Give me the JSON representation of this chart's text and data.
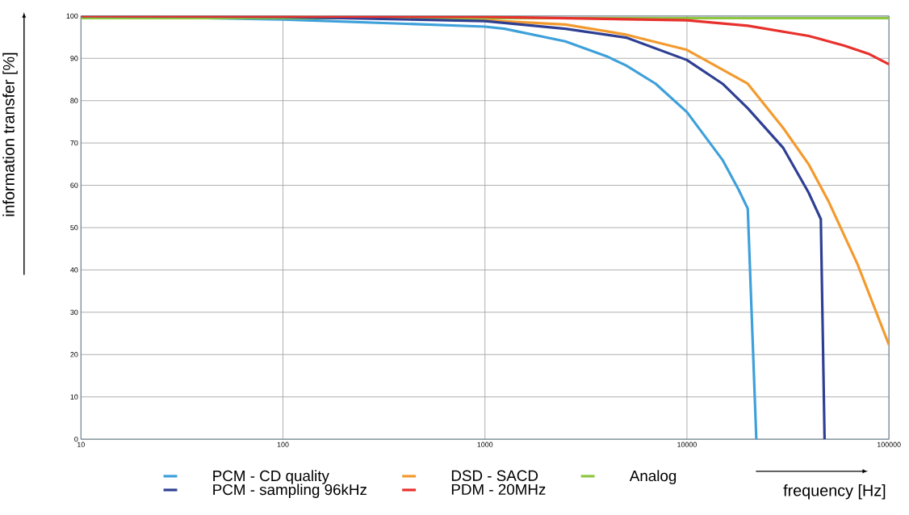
{
  "chart_data": {
    "type": "line",
    "xlabel": "frequency [Hz]",
    "ylabel": "information transfer [%]",
    "log": "x",
    "xlim": [
      10,
      100000
    ],
    "xticks": [
      10,
      100,
      1000,
      10000,
      100000
    ],
    "ylim": [
      0,
      100
    ],
    "yticks": [
      0,
      10,
      20,
      30,
      40,
      50,
      60,
      70,
      80,
      90,
      100
    ],
    "grid": true,
    "legend": "bottom",
    "marker": "none",
    "line_style": "solid",
    "series": [
      {
        "name": "PCM - CD quality",
        "color": "#3ea0da",
        "x": [
          10,
          100,
          1000,
          1250,
          2500,
          4000,
          5000,
          7000,
          10000,
          15000,
          18000,
          20000,
          22050
        ],
        "values": [
          100,
          99.2,
          97.5,
          97,
          94,
          90.5,
          88.3,
          84,
          77.3,
          66,
          59,
          54.5,
          0
        ]
      },
      {
        "name": "DSD - SACD",
        "color": "#f39a2e",
        "x": [
          10,
          100,
          1000,
          2500,
          5000,
          10000,
          20000,
          30000,
          40000,
          50000,
          70000,
          100000
        ],
        "values": [
          100,
          100,
          99,
          98,
          95.6,
          92,
          84,
          73.5,
          65,
          56.4,
          41.3,
          22.3
        ]
      },
      {
        "name": "Analog",
        "color": "#8dc63f",
        "x": [
          10,
          100000
        ],
        "values": [
          99.5,
          99.5
        ]
      },
      {
        "name": "PCM - sampling 96kHz",
        "color": "#2e3f93",
        "x": [
          10,
          100,
          1000,
          2500,
          5000,
          10000,
          15000,
          20000,
          30000,
          40000,
          46000,
          48000
        ],
        "values": [
          100,
          99.8,
          98.8,
          97,
          94.9,
          89.6,
          84,
          78.2,
          68.8,
          58.3,
          52,
          0
        ]
      },
      {
        "name": "PDM - 20MHz",
        "color": "#e8302c",
        "x": [
          10,
          1000,
          10000,
          20000,
          40000,
          60000,
          80000,
          100000
        ],
        "values": [
          100,
          99.8,
          99,
          97.7,
          95.3,
          93,
          91,
          88.6
        ]
      }
    ]
  }
}
